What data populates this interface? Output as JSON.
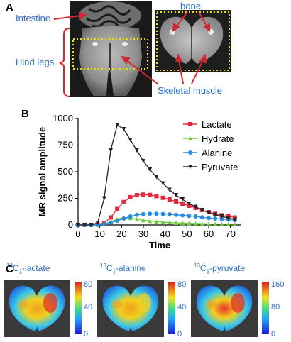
{
  "panels": {
    "a": "A",
    "b": "B",
    "c": "C"
  },
  "panel_a": {
    "labels": {
      "intestine": "Intestine",
      "hind_legs": "Hind legs",
      "bone": "bone",
      "skeletal_muscle": "Skeletal muscle"
    }
  },
  "chart_data": {
    "type": "line",
    "xlabel": "Time",
    "ylabel": "MR signal amplitude",
    "xlim": [
      0,
      75
    ],
    "ylim": [
      0,
      1000
    ],
    "xticks": [
      0,
      10,
      20,
      30,
      40,
      50,
      60,
      70
    ],
    "yticks": [
      0,
      250,
      500,
      750,
      1000
    ],
    "legend_position": "top-right",
    "x": [
      0,
      3,
      6,
      9,
      12,
      15,
      18,
      21,
      24,
      27,
      30,
      33,
      36,
      39,
      42,
      45,
      48,
      51,
      54,
      57,
      60,
      63,
      66,
      69,
      72
    ],
    "series": [
      {
        "name": "Lactate",
        "color": "#e8283c",
        "marker": "square",
        "values": [
          0,
          0,
          0,
          5,
          20,
          70,
          150,
          215,
          260,
          280,
          285,
          282,
          270,
          255,
          240,
          220,
          200,
          180,
          160,
          140,
          120,
          105,
          90,
          80,
          70
        ]
      },
      {
        "name": "Hydrate",
        "color": "#6bcb3a",
        "marker": "triangle-up",
        "values": [
          0,
          0,
          0,
          2,
          10,
          30,
          55,
          68,
          65,
          55,
          45,
          38,
          32,
          27,
          23,
          20,
          18,
          16,
          14,
          12,
          10,
          9,
          8,
          7,
          6
        ]
      },
      {
        "name": "Alanine",
        "color": "#2a8ae0",
        "marker": "circle",
        "values": [
          0,
          0,
          0,
          2,
          8,
          20,
          40,
          60,
          80,
          95,
          102,
          105,
          105,
          103,
          100,
          95,
          90,
          85,
          80,
          72,
          65,
          60,
          55,
          50,
          45
        ]
      },
      {
        "name": "Pyruvate",
        "color": "#222222",
        "marker": "triangle-down",
        "values": [
          0,
          0,
          0,
          20,
          250,
          700,
          940,
          900,
          800,
          700,
          600,
          520,
          450,
          390,
          330,
          280,
          240,
          200,
          170,
          140,
          115,
          95,
          80,
          65,
          50
        ]
      }
    ]
  },
  "panel_c": {
    "maps": [
      {
        "iso": "13",
        "sub": "1",
        "rest": "-lactate",
        "prefix": "C",
        "ticks": [
          "80",
          "40",
          "0"
        ]
      },
      {
        "iso": "13",
        "sub": "1",
        "rest": "-alanine",
        "prefix": "C",
        "ticks": [
          "80",
          "40",
          "0"
        ]
      },
      {
        "iso": "13",
        "sub": "1",
        "rest": "-pyruvate",
        "prefix": "C",
        "ticks": [
          "160",
          "80",
          "0"
        ]
      }
    ]
  }
}
